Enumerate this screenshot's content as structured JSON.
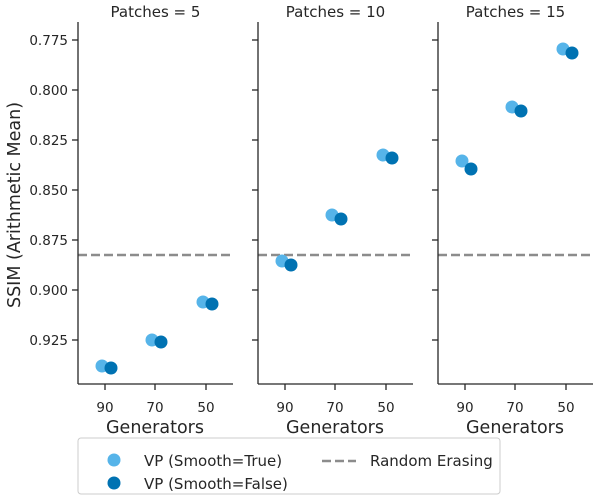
{
  "chart_data": {
    "type": "scatter",
    "ylabel": "SSIM (Arithmetic Mean)",
    "xlabel": "Generators",
    "y_inverted": true,
    "ylim": [
      0.766,
      0.947
    ],
    "y_ticks": [
      0.775,
      0.8,
      0.825,
      0.85,
      0.875,
      0.9,
      0.925
    ],
    "y_tick_labels": [
      "0.775",
      "0.800",
      "0.825",
      "0.850",
      "0.875",
      "0.900",
      "0.925"
    ],
    "x_categories": [
      "90",
      "70",
      "50"
    ],
    "reference_line": {
      "name": "Random Erasing",
      "value": 0.8825
    },
    "series": [
      {
        "name": "VP (Smooth=True)",
        "color": "#56b4e9"
      },
      {
        "name": "VP (Smooth=False)",
        "color": "#0072b2"
      }
    ],
    "panels": [
      {
        "title": "Patches = 5",
        "values": {
          "VP (Smooth=True)": [
            0.938,
            0.925,
            0.906
          ],
          "VP (Smooth=False)": [
            0.939,
            0.926,
            0.907
          ]
        }
      },
      {
        "title": "Patches = 10",
        "values": {
          "VP (Smooth=True)": [
            0.8855,
            0.8625,
            0.8325
          ],
          "VP (Smooth=False)": [
            0.8875,
            0.8645,
            0.834
          ]
        }
      },
      {
        "title": "Patches = 15",
        "values": {
          "VP (Smooth=True)": [
            0.8355,
            0.8085,
            0.7795
          ],
          "VP (Smooth=False)": [
            0.8395,
            0.8105,
            0.7815
          ]
        }
      }
    ]
  }
}
